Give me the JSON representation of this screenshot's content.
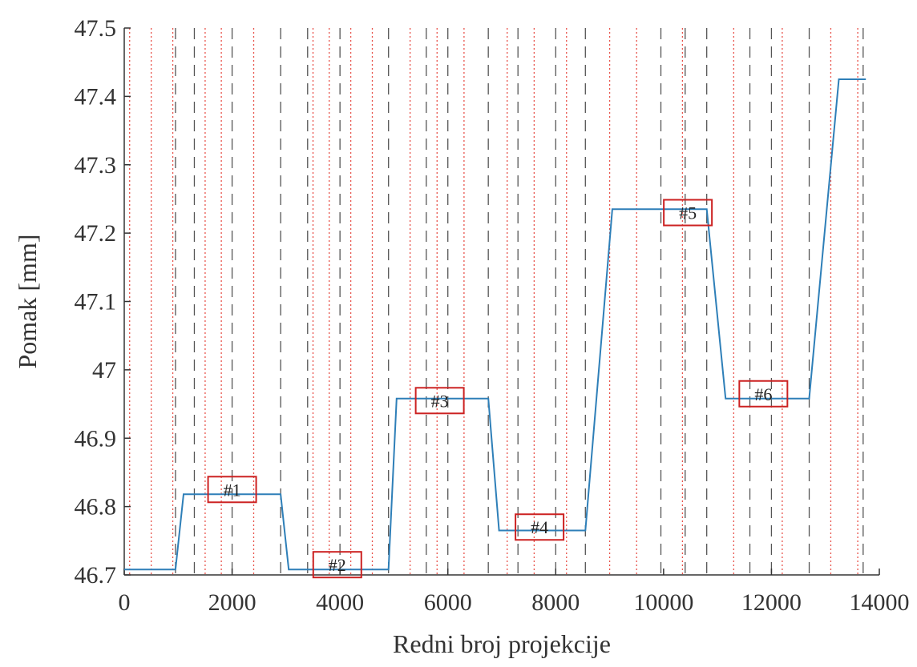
{
  "chart_data": {
    "type": "line",
    "title": "",
    "xlabel": "Redni broj projekcije",
    "ylabel": "Pomak [mm]",
    "xlim": [
      0,
      14000
    ],
    "ylim": [
      46.7,
      47.5
    ],
    "x_ticks": [
      0,
      2000,
      4000,
      6000,
      8000,
      10000,
      12000,
      14000
    ],
    "x_tick_labels": [
      "0",
      "2000",
      "4000",
      "6000",
      "8000",
      "10000",
      "12000",
      "14000"
    ],
    "y_ticks": [
      46.7,
      46.8,
      46.9,
      47.0,
      47.1,
      47.2,
      47.3,
      47.4,
      47.5
    ],
    "y_tick_labels": [
      "46.7",
      "46.8",
      "46.9",
      "47",
      "47.1",
      "47.2",
      "47.3",
      "47.4",
      "47.5"
    ],
    "grid": false,
    "series": [
      {
        "color": "#2e7fb8",
        "x": [
          0,
          950,
          1100,
          2900,
          3050,
          4900,
          5050,
          6750,
          6950,
          8550,
          9050,
          10800,
          11150,
          12700,
          13250,
          13750
        ],
        "y": [
          46.708,
          46.708,
          46.818,
          46.818,
          46.708,
          46.708,
          46.958,
          46.958,
          46.765,
          46.765,
          47.235,
          47.235,
          46.958,
          46.958,
          47.425,
          47.425
        ]
      }
    ],
    "dashed_lines": {
      "color": "#555555",
      "x": [
        950,
        1300,
        2000,
        2900,
        3400,
        4000,
        4900,
        5600,
        6000,
        6750,
        7300,
        8000,
        8550,
        9950,
        10400,
        10800,
        11600,
        12000,
        12700,
        13700
      ]
    },
    "dotted_lines": {
      "color": "#e8524a",
      "x": [
        100,
        500,
        900,
        1500,
        1800,
        2400,
        3500,
        3800,
        4200,
        4600,
        5300,
        5800,
        6300,
        7100,
        7600,
        8200,
        9000,
        9500,
        10350,
        11300,
        12200,
        13100,
        13600
      ]
    },
    "annotations": [
      {
        "text": "#1",
        "x": 2000,
        "y": 46.825,
        "border": "#cc2222"
      },
      {
        "text": "#2",
        "x": 3950,
        "y": 46.715,
        "border": "#cc2222"
      },
      {
        "text": "#3",
        "x": 5850,
        "y": 46.955,
        "border": "#cc2222"
      },
      {
        "text": "#4",
        "x": 7700,
        "y": 46.77,
        "border": "#cc2222"
      },
      {
        "text": "#5",
        "x": 10450,
        "y": 47.23,
        "border": "#cc2222"
      },
      {
        "text": "#6",
        "x": 11850,
        "y": 46.965,
        "border": "#cc2222"
      }
    ]
  }
}
